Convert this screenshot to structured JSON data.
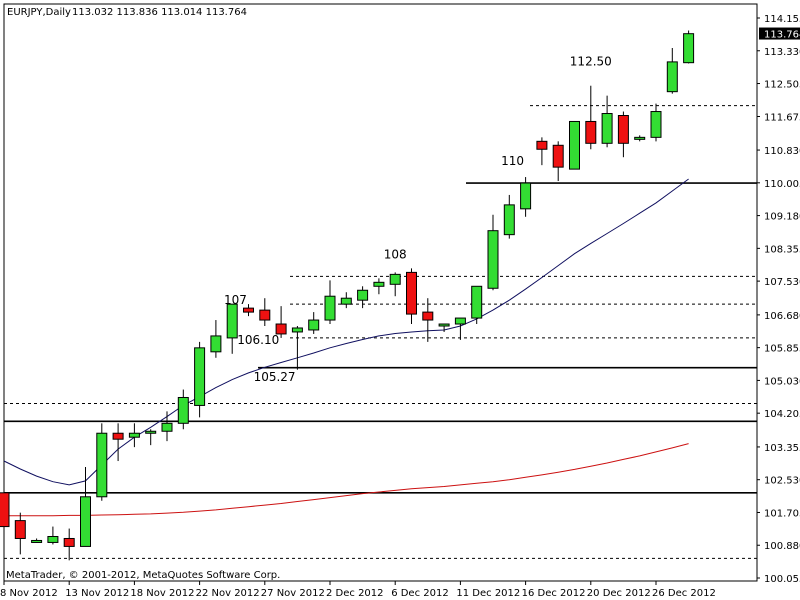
{
  "header": {
    "symbol": "EURJPY,Daily",
    "ohlc": "113.032 113.836 113.014 113.764"
  },
  "footer": {
    "copyright": "MetaTrader, © 2001-2012, MetaQuotes Software Corp."
  },
  "current_price": "113.764",
  "colors": {
    "bull": "#33dd33",
    "bear": "#ee1111",
    "ma_fast": "#101060",
    "ma_slow": "#cc1111",
    "current_price_box": "#000000"
  },
  "chart_data": {
    "type": "candlestick",
    "title": "EURJPY,Daily",
    "ylim": [
      99.95,
      114.5
    ],
    "y_ticks": [
      "114.155",
      "113.330",
      "112.505",
      "111.675",
      "110.830",
      "110.005",
      "109.180",
      "108.355",
      "107.530",
      "106.680",
      "105.855",
      "105.030",
      "104.205",
      "103.355",
      "102.530",
      "101.705",
      "100.880",
      "100.055"
    ],
    "x_ticks": [
      {
        "i": 0,
        "label": "8 Nov 2012"
      },
      {
        "i": 4,
        "label": "13 Nov 2012"
      },
      {
        "i": 8,
        "label": "18 Nov 2012"
      },
      {
        "i": 12,
        "label": "22 Nov 2012"
      },
      {
        "i": 16,
        "label": "27 Nov 2012"
      },
      {
        "i": 20,
        "label": "2 Dec 2012"
      },
      {
        "i": 24,
        "label": "6 Dec 2012"
      },
      {
        "i": 28,
        "label": "11 Dec 2012"
      },
      {
        "i": 32,
        "label": "16 Dec 2012"
      },
      {
        "i": 36,
        "label": "20 Dec 2012"
      },
      {
        "i": 40,
        "label": "26 Dec 2012"
      }
    ],
    "candles": [
      {
        "o": 102.2,
        "h": 102.3,
        "l": 101.05,
        "c": 101.35
      },
      {
        "o": 101.5,
        "h": 101.7,
        "l": 100.65,
        "c": 101.05
      },
      {
        "o": 101.0,
        "h": 101.05,
        "l": 100.95,
        "c": 101.0
      },
      {
        "o": 100.95,
        "h": 101.35,
        "l": 100.9,
        "c": 101.1
      },
      {
        "o": 101.05,
        "h": 101.3,
        "l": 100.5,
        "c": 100.85
      },
      {
        "o": 100.85,
        "h": 102.85,
        "l": 100.85,
        "c": 102.1
      },
      {
        "o": 102.1,
        "h": 103.95,
        "l": 102.0,
        "c": 103.7
      },
      {
        "o": 103.7,
        "h": 103.95,
        "l": 103.0,
        "c": 103.55
      },
      {
        "o": 103.6,
        "h": 103.95,
        "l": 103.35,
        "c": 103.7
      },
      {
        "o": 103.7,
        "h": 103.8,
        "l": 103.4,
        "c": 103.75
      },
      {
        "o": 103.75,
        "h": 104.25,
        "l": 103.5,
        "c": 103.95
      },
      {
        "o": 103.95,
        "h": 104.8,
        "l": 103.8,
        "c": 104.6
      },
      {
        "o": 104.4,
        "h": 106.0,
        "l": 104.1,
        "c": 105.85
      },
      {
        "o": 105.75,
        "h": 106.55,
        "l": 105.6,
        "c": 106.15
      },
      {
        "o": 106.1,
        "h": 106.95,
        "l": 105.7,
        "c": 106.95
      },
      {
        "o": 106.85,
        "h": 106.95,
        "l": 106.65,
        "c": 106.75
      },
      {
        "o": 106.8,
        "h": 107.1,
        "l": 106.4,
        "c": 106.55
      },
      {
        "o": 106.45,
        "h": 106.9,
        "l": 106.1,
        "c": 106.2
      },
      {
        "o": 106.25,
        "h": 106.4,
        "l": 105.3,
        "c": 106.35
      },
      {
        "o": 106.3,
        "h": 106.75,
        "l": 106.2,
        "c": 106.55
      },
      {
        "o": 106.55,
        "h": 107.55,
        "l": 106.45,
        "c": 107.15
      },
      {
        "o": 106.95,
        "h": 107.25,
        "l": 106.85,
        "c": 107.1
      },
      {
        "o": 107.05,
        "h": 107.4,
        "l": 106.85,
        "c": 107.3
      },
      {
        "o": 107.4,
        "h": 107.6,
        "l": 107.2,
        "c": 107.5
      },
      {
        "o": 107.45,
        "h": 107.75,
        "l": 107.15,
        "c": 107.7
      },
      {
        "o": 107.75,
        "h": 107.85,
        "l": 106.45,
        "c": 106.7
      },
      {
        "o": 106.75,
        "h": 107.1,
        "l": 106.0,
        "c": 106.55
      },
      {
        "o": 106.4,
        "h": 106.45,
        "l": 106.25,
        "c": 106.45
      },
      {
        "o": 106.45,
        "h": 106.6,
        "l": 106.05,
        "c": 106.6
      },
      {
        "o": 106.6,
        "h": 107.4,
        "l": 106.45,
        "c": 107.4
      },
      {
        "o": 107.35,
        "h": 109.2,
        "l": 107.3,
        "c": 108.8
      },
      {
        "o": 108.7,
        "h": 109.7,
        "l": 108.6,
        "c": 109.45
      },
      {
        "o": 109.35,
        "h": 110.15,
        "l": 109.15,
        "c": 110.0
      },
      {
        "o": 111.05,
        "h": 111.15,
        "l": 110.45,
        "c": 110.85
      },
      {
        "o": 110.95,
        "h": 111.05,
        "l": 110.05,
        "c": 110.4
      },
      {
        "o": 110.35,
        "h": 111.55,
        "l": 110.35,
        "c": 111.55
      },
      {
        "o": 111.55,
        "h": 112.45,
        "l": 110.85,
        "c": 111.0
      },
      {
        "o": 111.0,
        "h": 112.2,
        "l": 110.9,
        "c": 111.75
      },
      {
        "o": 111.7,
        "h": 111.8,
        "l": 110.65,
        "c": 111.0
      },
      {
        "o": 111.15,
        "h": 111.2,
        "l": 111.05,
        "c": 111.15
      },
      {
        "o": 111.15,
        "h": 112.0,
        "l": 111.05,
        "c": 111.8
      },
      {
        "o": 112.3,
        "h": 113.4,
        "l": 112.25,
        "c": 113.05
      },
      {
        "o": 113.03,
        "h": 113.84,
        "l": 113.01,
        "c": 113.76
      }
    ],
    "ma_fast": [
      103.0,
      102.8,
      102.62,
      102.48,
      102.4,
      102.5,
      102.9,
      103.3,
      103.6,
      103.85,
      104.12,
      104.4,
      104.62,
      104.85,
      105.05,
      105.22,
      105.36,
      105.48,
      105.6,
      105.72,
      105.85,
      105.96,
      106.06,
      106.15,
      106.21,
      106.25,
      106.28,
      106.3,
      106.4,
      106.58,
      106.8,
      107.05,
      107.33,
      107.62,
      107.92,
      108.22,
      108.48,
      108.73,
      108.98,
      109.24,
      109.5,
      109.8,
      110.1
    ],
    "ma_slow": [
      101.62,
      101.62,
      101.62,
      101.62,
      101.63,
      101.63,
      101.64,
      101.65,
      101.66,
      101.67,
      101.69,
      101.71,
      101.74,
      101.77,
      101.81,
      101.85,
      101.89,
      101.93,
      101.98,
      102.03,
      102.08,
      102.13,
      102.18,
      102.22,
      102.26,
      102.3,
      102.33,
      102.36,
      102.4,
      102.44,
      102.48,
      102.53,
      102.59,
      102.65,
      102.72,
      102.79,
      102.87,
      102.95,
      103.04,
      103.13,
      103.23,
      103.33,
      103.44
    ],
    "ma_slow_start": 0,
    "solid_lines": [
      110.0,
      105.35,
      104.0,
      102.2
    ],
    "solid_line_starts": [
      466,
      258,
      4,
      4
    ],
    "dashed_lines": [
      111.95,
      107.65,
      106.95,
      106.1,
      104.45,
      100.55
    ],
    "dashed_line_starts": [
      530,
      290,
      290,
      290,
      4,
      4
    ],
    "annotations": [
      {
        "text": "112.50",
        "i": 36.0
      },
      {
        "text": "110",
        "i": 31.2
      },
      {
        "text": "108",
        "i": 24.0
      },
      {
        "text": "107",
        "i": 14.2
      },
      {
        "text": "106.10",
        "i": 15.6
      },
      {
        "text": "105.27",
        "i": 16.6
      }
    ]
  }
}
